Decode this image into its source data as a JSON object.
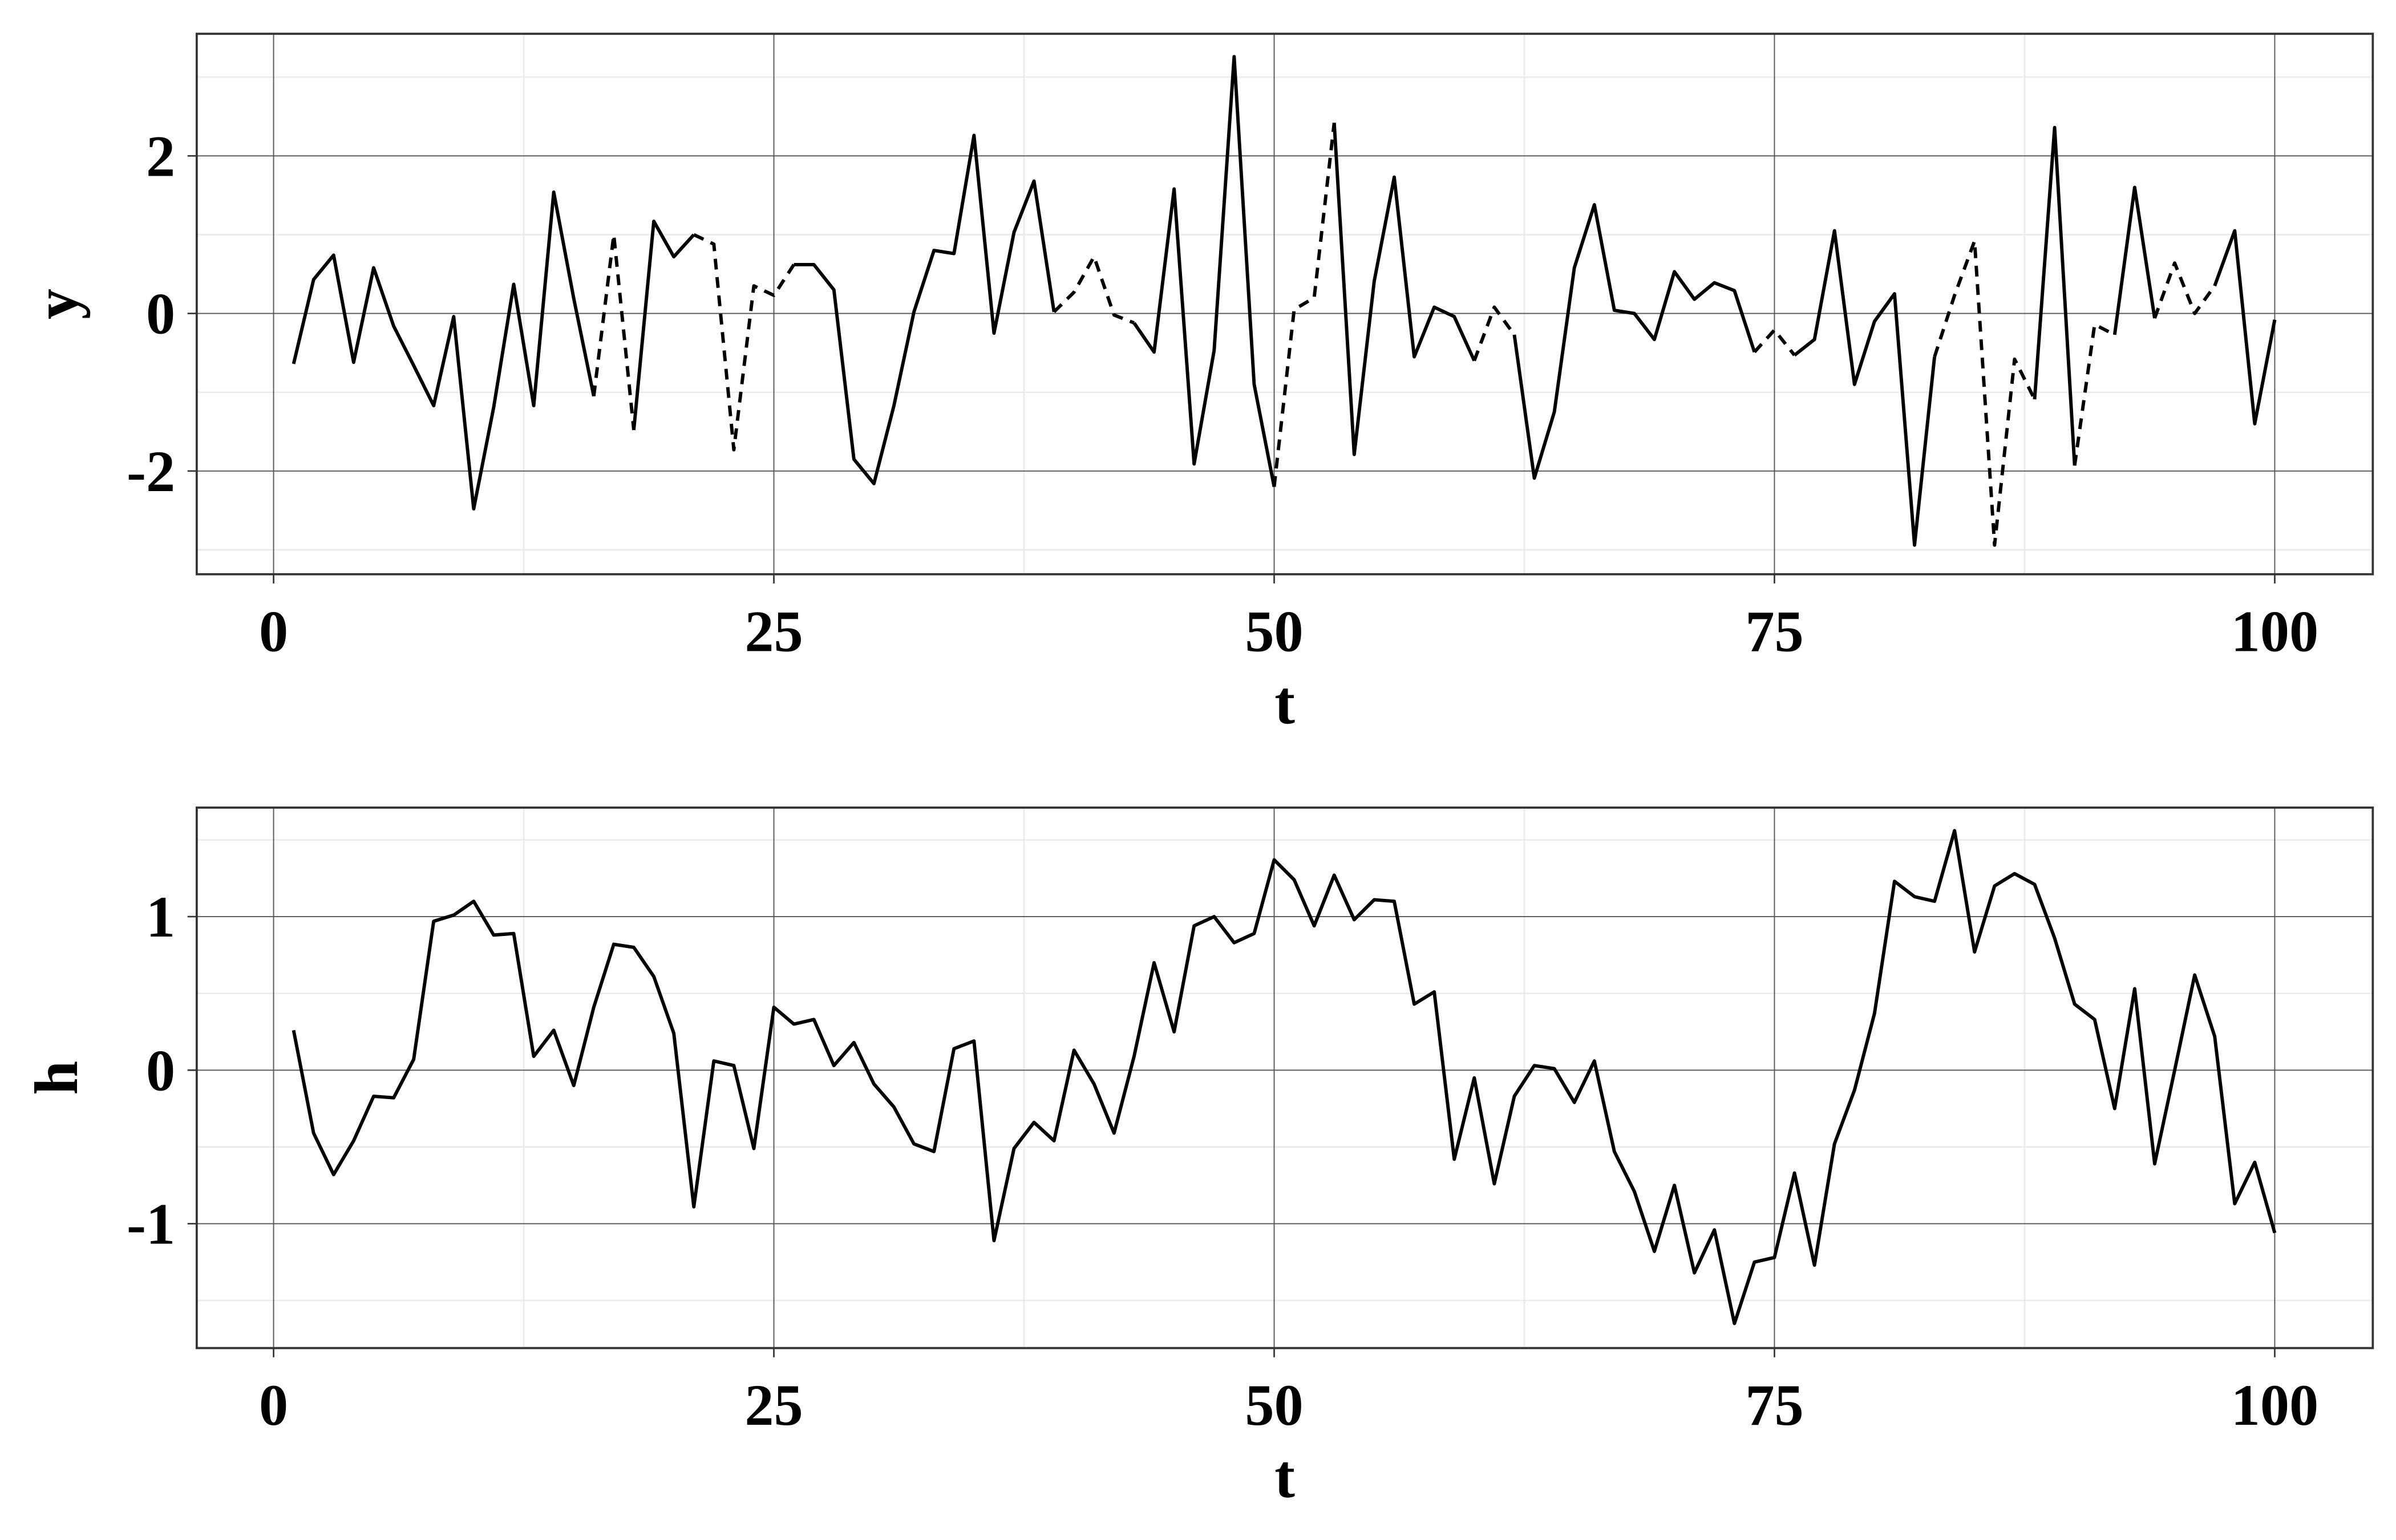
{
  "chart_data": [
    {
      "type": "line",
      "xlabel": "t",
      "ylabel": "y",
      "x": [
        1,
        2,
        3,
        4,
        5,
        6,
        7,
        8,
        9,
        10,
        11,
        12,
        13,
        14,
        15,
        16,
        17,
        18,
        19,
        20,
        21,
        22,
        23,
        24,
        25,
        26,
        27,
        28,
        29,
        30,
        31,
        32,
        33,
        34,
        35,
        36,
        37,
        38,
        39,
        40,
        41,
        42,
        43,
        44,
        45,
        46,
        47,
        48,
        49,
        50,
        51,
        52,
        53,
        54,
        55,
        56,
        57,
        58,
        59,
        60,
        61,
        62,
        63,
        64,
        65,
        66,
        67,
        68,
        69,
        70,
        71,
        72,
        73,
        74,
        75,
        76,
        77,
        78,
        79,
        80,
        81,
        82,
        83,
        84,
        85,
        86,
        87,
        88,
        89,
        90,
        91,
        92,
        93,
        94,
        95,
        96,
        97,
        98,
        99,
        100
      ],
      "series": [
        {
          "color": "#000000",
          "dashed": false,
          "values": [
            -0.64,
            0.43,
            0.74,
            -0.62,
            0.58,
            -0.16,
            -0.66,
            -1.17,
            -0.04,
            -2.48,
            -1.19,
            0.37,
            -1.17,
            1.54,
            0.19,
            -1.05,
            null,
            -1.48,
            1.17,
            0.72,
            1.0,
            null,
            null,
            null,
            null,
            0.62,
            0.62,
            0.3,
            -1.85,
            -2.16,
            -1.17,
            0.02,
            0.8,
            0.76,
            2.26,
            -0.25,
            1.03,
            1.68,
            0.02,
            null,
            null,
            null,
            -0.12,
            -0.49,
            1.58,
            -1.91,
            -0.47,
            3.26,
            -0.9,
            -2.2,
            null,
            null,
            2.42,
            -1.79,
            0.41,
            1.73,
            -0.55,
            0.08,
            -0.04,
            -0.6,
            null,
            -0.27,
            -2.09,
            -1.25,
            0.58,
            1.38,
            0.04,
            0.0,
            -0.33,
            0.53,
            0.18,
            0.39,
            0.29,
            -0.49,
            null,
            -0.53,
            -0.33,
            1.05,
            -0.9,
            -0.1,
            0.25,
            -2.94,
            -0.55,
            null,
            null,
            null,
            null,
            -1.09,
            2.36,
            -1.93,
            null,
            -0.27,
            1.6,
            -0.06,
            null,
            null,
            0.35,
            1.05,
            -1.4,
            -0.08
          ]
        },
        {
          "color": "#000000",
          "dashed": true,
          "values": [
            null,
            null,
            null,
            null,
            null,
            null,
            null,
            null,
            null,
            null,
            null,
            null,
            null,
            null,
            null,
            -1.05,
            1.0,
            -1.48,
            null,
            null,
            1.0,
            0.88,
            -1.73,
            0.35,
            0.23,
            0.62,
            null,
            null,
            null,
            null,
            null,
            null,
            null,
            null,
            null,
            null,
            null,
            null,
            0.02,
            0.27,
            0.72,
            -0.02,
            -0.12,
            null,
            null,
            null,
            null,
            null,
            null,
            -2.2,
            0.05,
            0.2,
            2.42,
            null,
            null,
            null,
            null,
            null,
            null,
            -0.6,
            0.08,
            -0.27,
            null,
            null,
            null,
            null,
            null,
            null,
            null,
            null,
            null,
            null,
            null,
            -0.49,
            -0.21,
            -0.53,
            null,
            null,
            null,
            null,
            null,
            null,
            -0.55,
            0.23,
            0.92,
            -2.94,
            -0.58,
            -1.09,
            null,
            -1.93,
            -0.14,
            -0.27,
            null,
            -0.06,
            0.64,
            0.0,
            0.35,
            null,
            null,
            null
          ]
        }
      ],
      "xlim": [
        -3.84,
        104.9
      ],
      "xticks": [
        0,
        25,
        50,
        75,
        100
      ],
      "ylim": [
        -3.31,
        3.55
      ],
      "yticks": [
        -2,
        0,
        2
      ],
      "grid": true
    },
    {
      "type": "line",
      "xlabel": "t",
      "ylabel": "h",
      "x": [
        1,
        2,
        3,
        4,
        5,
        6,
        7,
        8,
        9,
        10,
        11,
        12,
        13,
        14,
        15,
        16,
        17,
        18,
        19,
        20,
        21,
        22,
        23,
        24,
        25,
        26,
        27,
        28,
        29,
        30,
        31,
        32,
        33,
        34,
        35,
        36,
        37,
        38,
        39,
        40,
        41,
        42,
        43,
        44,
        45,
        46,
        47,
        48,
        49,
        50,
        51,
        52,
        53,
        54,
        55,
        56,
        57,
        58,
        59,
        60,
        61,
        62,
        63,
        64,
        65,
        66,
        67,
        68,
        69,
        70,
        71,
        72,
        73,
        74,
        75,
        76,
        77,
        78,
        79,
        80,
        81,
        82,
        83,
        84,
        85,
        86,
        87,
        88,
        89,
        90,
        91,
        92,
        93,
        94,
        95,
        96,
        97,
        98,
        99,
        100
      ],
      "series": [
        {
          "color": "#000000",
          "dashed": false,
          "values": [
            0.26,
            -0.41,
            -0.68,
            -0.46,
            -0.17,
            -0.18,
            0.07,
            0.97,
            1.01,
            1.1,
            0.88,
            0.89,
            0.09,
            0.26,
            -0.1,
            0.41,
            0.82,
            0.8,
            0.61,
            0.24,
            -0.89,
            0.06,
            0.03,
            -0.51,
            0.41,
            0.3,
            0.33,
            0.03,
            0.18,
            -0.09,
            -0.24,
            -0.48,
            -0.53,
            0.14,
            0.19,
            -1.11,
            -0.51,
            -0.34,
            -0.46,
            0.13,
            -0.09,
            -0.41,
            0.09,
            0.7,
            0.25,
            0.94,
            1.0,
            0.83,
            0.89,
            1.37,
            1.24,
            0.94,
            1.27,
            0.98,
            1.11,
            1.1,
            0.43,
            0.51,
            -0.58,
            -0.05,
            -0.74,
            -0.17,
            0.03,
            0.01,
            -0.21,
            0.06,
            -0.53,
            -0.79,
            -1.18,
            -0.75,
            -1.32,
            -1.04,
            -1.65,
            -1.25,
            -1.22,
            -0.67,
            -1.27,
            -0.48,
            -0.13,
            0.37,
            1.23,
            1.13,
            1.1,
            1.56,
            0.77,
            1.2,
            1.28,
            1.21,
            0.86,
            0.43,
            0.33,
            -0.25,
            0.53,
            -0.61,
            0.0,
            0.62,
            0.22,
            -0.87,
            -0.6,
            -1.06
          ]
        }
      ],
      "xlim": [
        -3.84,
        104.9
      ],
      "xticks": [
        0,
        25,
        50,
        75,
        100
      ],
      "ylim": [
        -1.81,
        1.71
      ],
      "yticks": [
        -1,
        0,
        1
      ],
      "grid": true
    }
  ]
}
